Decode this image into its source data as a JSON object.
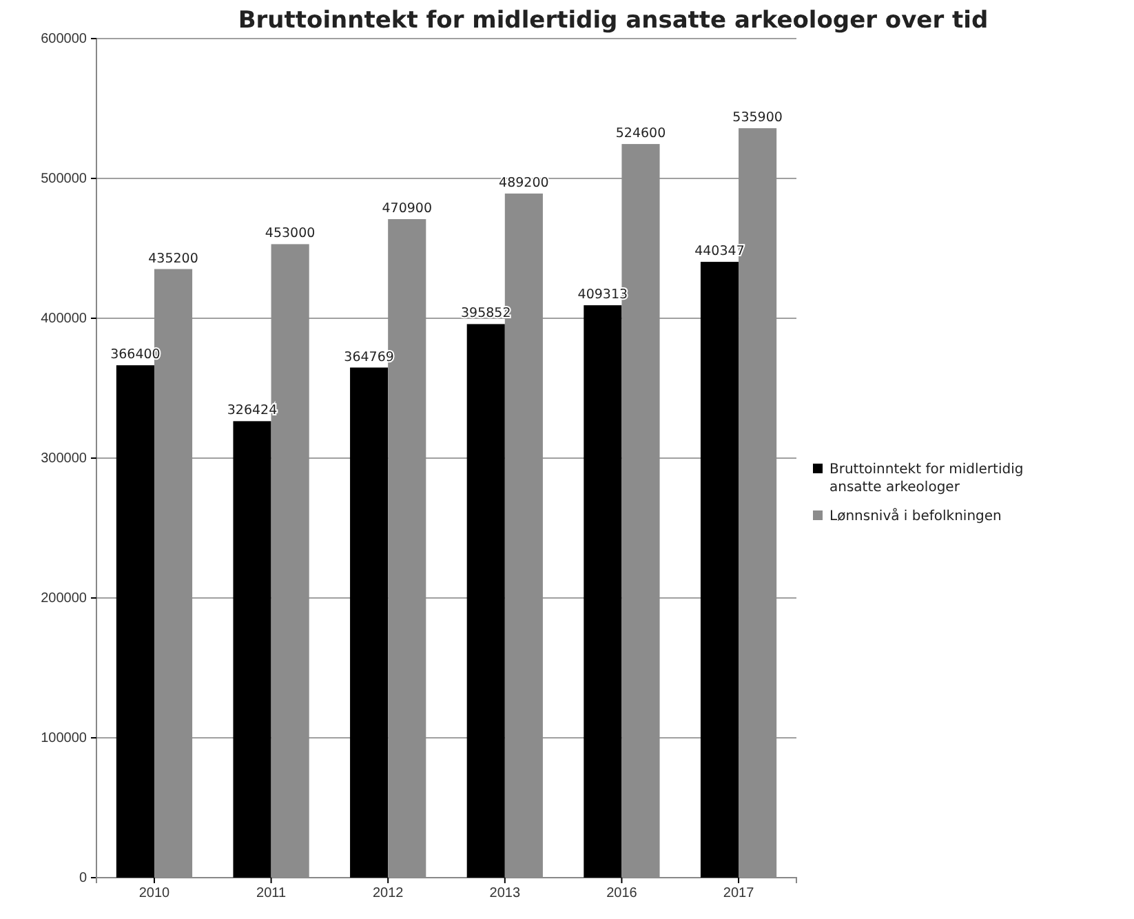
{
  "chart_data": {
    "type": "bar",
    "title": "Bruttoinntekt for midlertidig ansatte arkeologer over tid",
    "categories": [
      "2010",
      "2011",
      "2012",
      "2013",
      "2016",
      "2017"
    ],
    "series": [
      {
        "name": "Bruttoinntekt for midlertidig ansatte arkeologer",
        "color": "#000000",
        "values": [
          366400,
          326424,
          364769,
          395852,
          409313,
          440347
        ]
      },
      {
        "name": "Lønnsnivå i befolkningen",
        "color": "#8c8c8c",
        "values": [
          435200,
          453000,
          470900,
          489200,
          524600,
          535900
        ]
      }
    ],
    "ylim": [
      0,
      600000
    ],
    "yticks": [
      0,
      100000,
      200000,
      300000,
      400000,
      500000,
      600000
    ],
    "grid": "y",
    "legend": "right",
    "data_labels": true
  }
}
